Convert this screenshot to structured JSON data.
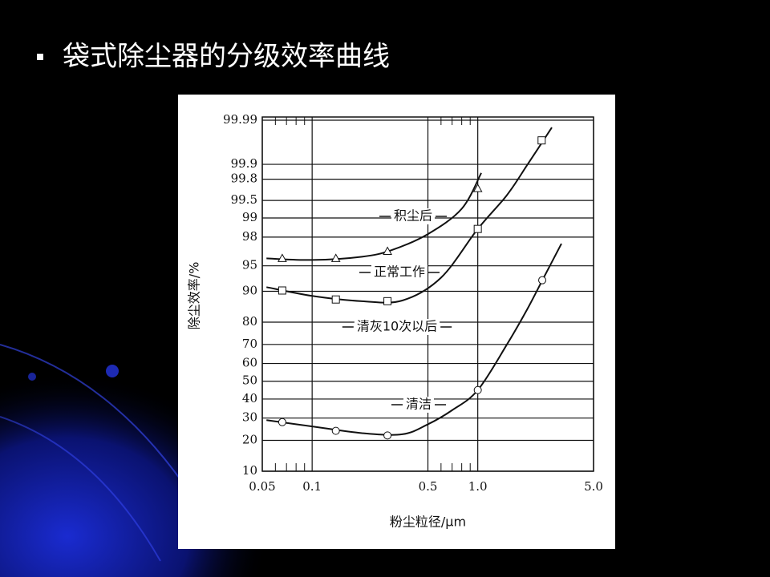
{
  "title": "袋式除尘器的分级效率曲线",
  "chart_data": {
    "type": "line",
    "xlabel": "粉尘粒径/μm",
    "ylabel": "除尘效率/%",
    "xscale": "log",
    "yscale": "probit",
    "xlim": [
      0.05,
      5
    ],
    "ylim": [
      10,
      99.99
    ],
    "xticks": [
      0.05,
      0.1,
      0.5,
      {
        "value": 1,
        "label": "1.0"
      },
      {
        "value": 5,
        "label": "5.0"
      }
    ],
    "xminor_ticks": [
      0.06,
      0.07,
      0.08,
      0.09,
      0.6,
      0.7,
      0.8,
      0.9
    ],
    "yticks": [
      10,
      20,
      30,
      40,
      50,
      60,
      70,
      80,
      90,
      95,
      98,
      99,
      99.5,
      99.8,
      99.9,
      99.99
    ],
    "grid": true,
    "color": "#111111",
    "series": [
      {
        "name": "积尘后",
        "marker": "triangle",
        "x": [
          0.066,
          0.139,
          0.285,
          1.0
        ],
        "values": [
          96,
          96,
          96.8,
          99.7
        ],
        "curve_x": [
          0.053,
          0.1,
          0.2,
          0.3,
          0.5,
          0.8,
          1.05
        ],
        "curve_values": [
          96,
          95.8,
          96.2,
          96.9,
          98.2,
          99.3,
          99.85
        ]
      },
      {
        "name": "正常工作",
        "marker": "square",
        "x": [
          0.066,
          0.139,
          0.285,
          1.0,
          2.43
        ],
        "values": [
          90.2,
          87.8,
          87.3,
          98.5,
          99.97
        ],
        "curve_x": [
          0.053,
          0.1,
          0.2,
          0.35,
          0.6,
          1.0,
          1.5,
          2.0,
          2.8
        ],
        "curve_values": [
          91,
          88.8,
          87.3,
          87.5,
          93,
          98.5,
          99.6,
          99.9,
          99.985
        ]
      },
      {
        "name": "清灰10次以后",
        "marker": "none",
        "x": [],
        "values": [],
        "curve_x": [],
        "curve_values": []
      },
      {
        "name": "清洁",
        "marker": "circle",
        "x": [
          0.066,
          0.139,
          0.285,
          1.0,
          2.45
        ],
        "values": [
          28,
          24,
          22,
          45,
          92.5
        ],
        "curve_x": [
          0.053,
          0.1,
          0.2,
          0.35,
          0.5,
          0.7,
          1.0,
          1.5,
          2.0,
          2.5,
          3.2
        ],
        "curve_values": [
          29,
          26,
          23,
          22.5,
          27,
          34,
          45,
          70,
          85,
          93,
          97.5
        ]
      }
    ]
  }
}
